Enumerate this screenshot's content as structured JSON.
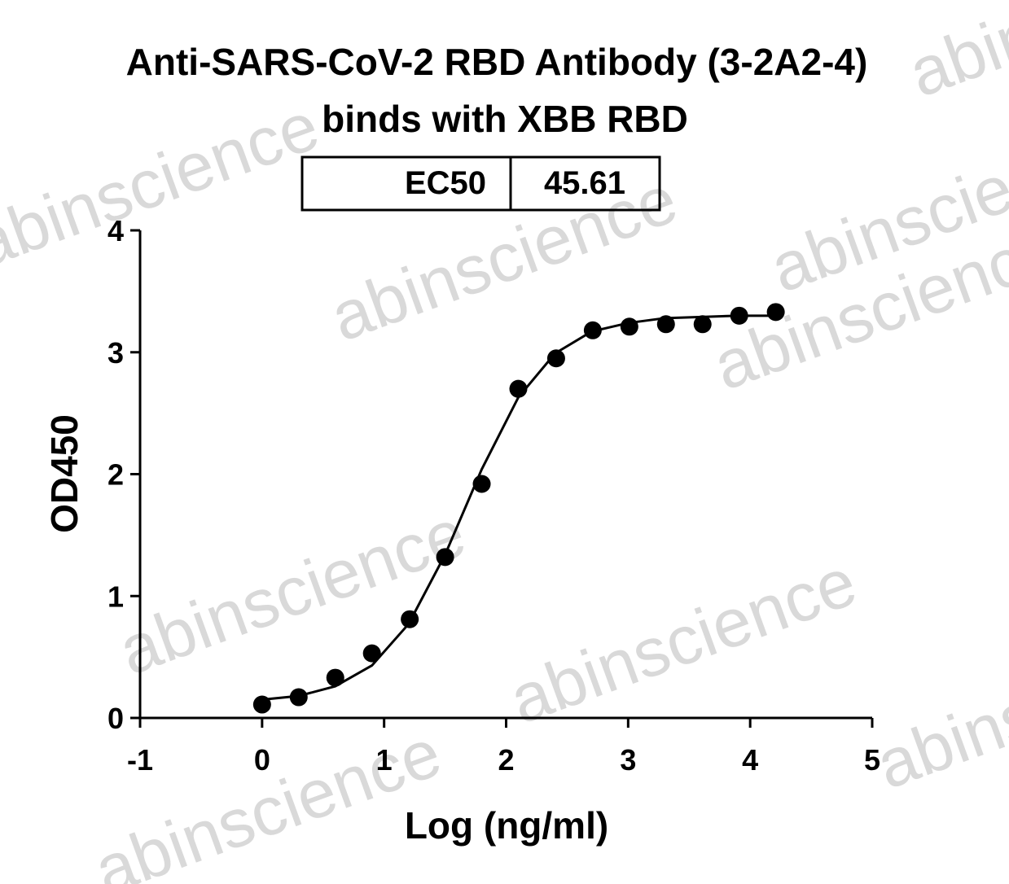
{
  "chart_data": {
    "type": "scatter",
    "title": "Anti-SARS-CoV-2 RBD Antibody (3-2A2-4)",
    "subtitle": "binds with XBB RBD",
    "table": {
      "label": "EC50",
      "value": "45.61"
    },
    "x_label": "Log (ng/ml)",
    "y_label": "OD450",
    "watermark": "abinscience",
    "xlim": [
      -1,
      5
    ],
    "xticks": [
      -1,
      0,
      1,
      2,
      3,
      4,
      5
    ],
    "ylim": [
      0,
      4
    ],
    "yticks": [
      0,
      1,
      2,
      3,
      4
    ],
    "color": "#000000",
    "x": [
      0,
      0.3,
      0.6,
      0.9,
      1.21,
      1.5,
      1.8,
      2.1,
      2.41,
      2.71,
      3.01,
      3.31,
      3.61,
      3.91,
      4.21
    ],
    "values": [
      0.11,
      0.17,
      0.33,
      0.53,
      0.81,
      1.32,
      1.92,
      2.7,
      2.95,
      3.18,
      3.21,
      3.23,
      3.23,
      3.3,
      3.33
    ],
    "fit": {
      "x": [
        0,
        0.3,
        0.6,
        0.9,
        1.2,
        1.5,
        1.8,
        2.1,
        2.4,
        2.7,
        3.0,
        3.3,
        3.6,
        3.9,
        4.2
      ],
      "values": [
        0.15,
        0.18,
        0.26,
        0.43,
        0.77,
        1.34,
        2.04,
        2.63,
        2.99,
        3.17,
        3.24,
        3.28,
        3.29,
        3.3,
        3.3
      ]
    }
  }
}
